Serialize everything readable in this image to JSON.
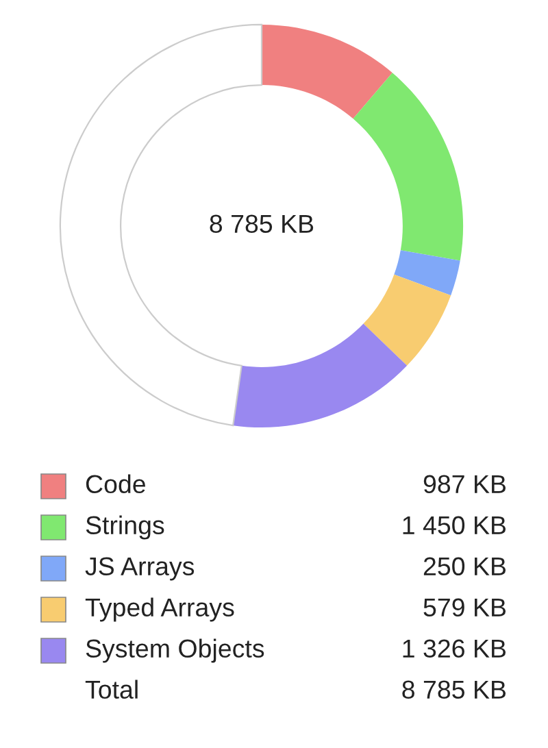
{
  "chart_data": {
    "type": "donut",
    "categories": [
      "Code",
      "Strings",
      "JS Arrays",
      "Typed Arrays",
      "System Objects",
      null
    ],
    "values": [
      987,
      1450,
      250,
      579,
      1326,
      4193
    ],
    "colors": [
      "#f08080",
      "#80e870",
      "#80a8f8",
      "#f8cc70",
      "#9988f0",
      "#ffffff"
    ],
    "value_labels": [
      "987 KB",
      "1 450 KB",
      "250 KB",
      "579 KB",
      "1 326 KB",
      null
    ],
    "legend": "bottom",
    "annotations": [
      "8 785 KB",
      "Total",
      "8 785 KB"
    ]
  }
}
